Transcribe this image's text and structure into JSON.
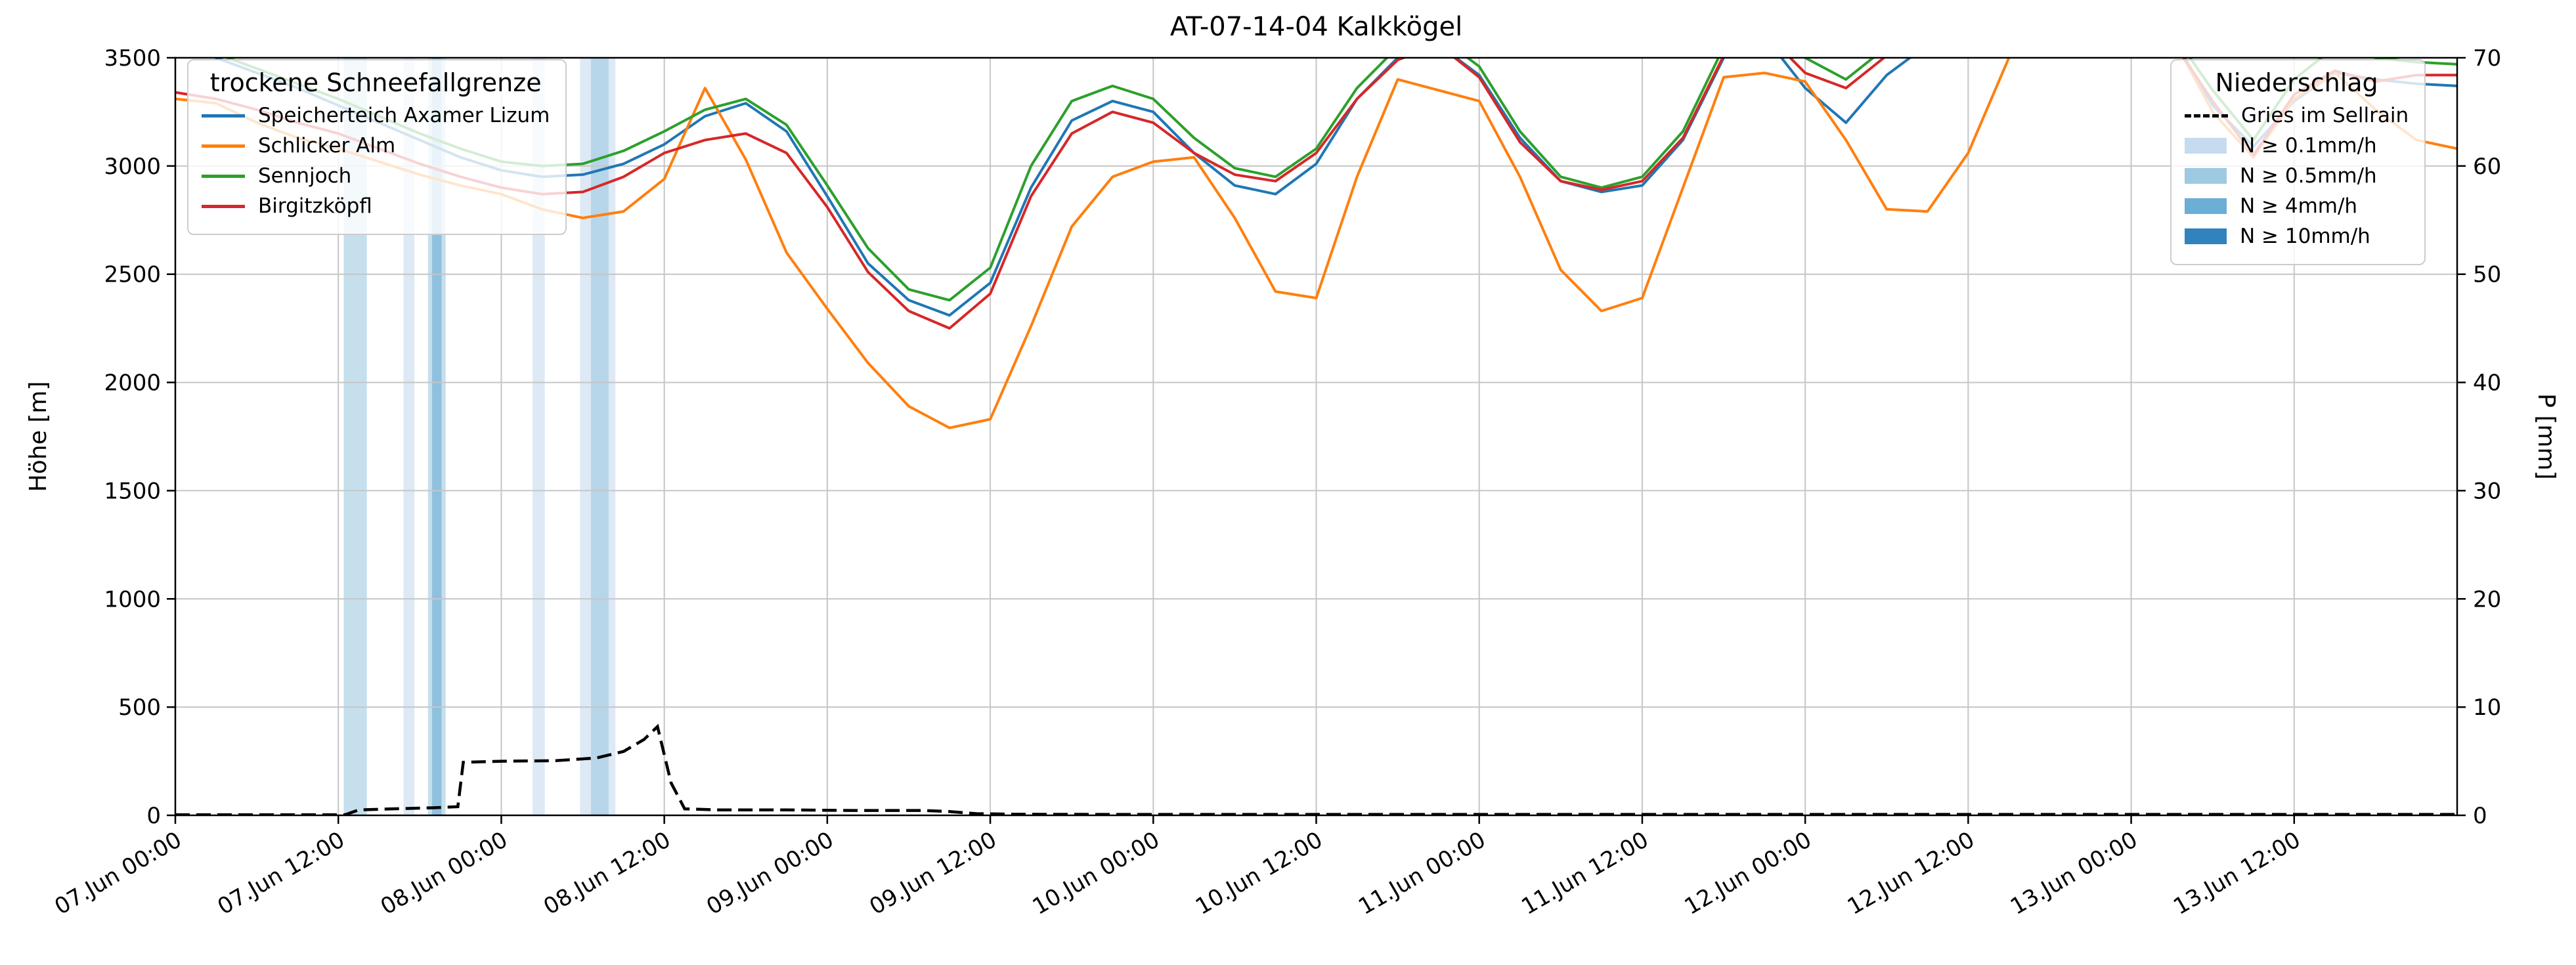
{
  "legends": {
    "lines_title": "trockene Schneefallgrenze",
    "precip_title": "Niederschlag"
  },
  "chart_data": {
    "type": "line",
    "title": "AT-07-14-04 Kalkkögel",
    "ylabel_left": "Höhe [m]",
    "ylabel_right": "P [mm]",
    "ylim_left": [
      0,
      3500
    ],
    "ylim_right": [
      0,
      70
    ],
    "xlim_hours": [
      0,
      168
    ],
    "x_unit": "hours since first tick",
    "grid": true,
    "legend_positions": [
      "upper left",
      "upper right"
    ],
    "x_tick_hours": [
      0,
      12,
      24,
      36,
      48,
      60,
      72,
      84,
      96,
      108,
      120,
      132,
      144,
      156
    ],
    "x_tick_labels": [
      "07.Jun 00:00",
      "07.Jun 12:00",
      "08.Jun 00:00",
      "08.Jun 12:00",
      "09.Jun 00:00",
      "09.Jun 12:00",
      "10.Jun 00:00",
      "10.Jun 12:00",
      "11.Jun 00:00",
      "11.Jun 12:00",
      "12.Jun 00:00",
      "12.Jun 12:00",
      "13.Jun 00:00",
      "13.Jun 12:00"
    ],
    "y_ticks_left": [
      0,
      500,
      1000,
      1500,
      2000,
      2500,
      3000,
      3500
    ],
    "y_ticks_right": [
      0,
      10,
      20,
      30,
      40,
      50,
      60,
      70
    ],
    "series_x_hours": [
      0,
      3,
      6,
      9,
      12,
      15,
      18,
      21,
      24,
      27,
      30,
      33,
      36,
      39,
      42,
      45,
      48,
      51,
      54,
      57,
      60,
      63,
      66,
      69,
      72,
      75,
      78,
      81,
      84,
      87,
      90,
      93,
      96,
      99,
      102,
      105,
      108,
      111,
      114,
      117,
      120,
      123,
      126,
      129,
      132,
      135,
      138,
      141,
      144,
      147,
      150,
      153,
      156,
      159,
      162,
      165,
      168
    ],
    "series": [
      {
        "name": "Speicherteich Axamer Lizum",
        "color": "#1f77b4",
        "values": [
          3560,
          3500,
          3430,
          3360,
          3280,
          3200,
          3120,
          3040,
          2980,
          2950,
          2960,
          3010,
          3100,
          3230,
          3290,
          3160,
          2860,
          2550,
          2380,
          2310,
          2460,
          2900,
          3210,
          3300,
          3250,
          3060,
          2910,
          2870,
          3010,
          3310,
          3500,
          3560,
          3420,
          3130,
          2930,
          2880,
          2910,
          3120,
          3500,
          3600,
          3360,
          3200,
          3420,
          3560,
          3620,
          3640,
          3640,
          3640,
          3640,
          3600,
          3280,
          3090,
          3300,
          3430,
          3400,
          3380,
          3370
        ]
      },
      {
        "name": "Schlicker Alm",
        "color": "#ff7f0e",
        "values": [
          3310,
          3290,
          3200,
          3130,
          3080,
          3020,
          2960,
          2910,
          2870,
          2800,
          2760,
          2790,
          2940,
          3360,
          3030,
          2600,
          2340,
          2090,
          1890,
          1790,
          1830,
          2260,
          2720,
          2950,
          3020,
          3040,
          2760,
          2420,
          2390,
          2950,
          3400,
          3350,
          3300,
          2950,
          2520,
          2330,
          2390,
          2900,
          3410,
          3430,
          3390,
          3120,
          2800,
          2790,
          3060,
          3500,
          3620,
          3640,
          3640,
          3600,
          3250,
          3040,
          3310,
          3430,
          3260,
          3120,
          3080
        ]
      },
      {
        "name": "Sennjoch",
        "color": "#2ca02c",
        "values": [
          3560,
          3520,
          3450,
          3380,
          3310,
          3230,
          3150,
          3080,
          3020,
          3000,
          3010,
          3070,
          3160,
          3260,
          3310,
          3190,
          2910,
          2620,
          2430,
          2380,
          2530,
          3000,
          3300,
          3370,
          3310,
          3130,
          2990,
          2950,
          3080,
          3360,
          3550,
          3600,
          3460,
          3160,
          2950,
          2900,
          2950,
          3160,
          3550,
          3650,
          3500,
          3400,
          3550,
          3650,
          3650,
          3650,
          3650,
          3650,
          3650,
          3620,
          3350,
          3120,
          3400,
          3550,
          3500,
          3480,
          3470
        ]
      },
      {
        "name": "Birgitzköpfl",
        "color": "#d62728",
        "values": [
          3340,
          3310,
          3260,
          3200,
          3150,
          3080,
          3010,
          2950,
          2900,
          2870,
          2880,
          2950,
          3060,
          3120,
          3150,
          3060,
          2810,
          2510,
          2330,
          2250,
          2410,
          2860,
          3150,
          3250,
          3200,
          3060,
          2960,
          2930,
          3060,
          3310,
          3490,
          3560,
          3410,
          3110,
          2930,
          2890,
          2930,
          3130,
          3510,
          3620,
          3430,
          3360,
          3510,
          3610,
          3620,
          3620,
          3620,
          3620,
          3620,
          3580,
          3300,
          3050,
          3330,
          3440,
          3390,
          3420,
          3420
        ]
      }
    ],
    "precip_line": {
      "name": "Gries im Sellrain",
      "color": "#000000",
      "style": "dashed",
      "x_hours": [
        0,
        12.5,
        13.5,
        16,
        19,
        20.8,
        21.2,
        24,
        28,
        31,
        33,
        34.5,
        35.5,
        36.5,
        37.5,
        40,
        45,
        50,
        55,
        57,
        59,
        62,
        70,
        90,
        120,
        150,
        168
      ],
      "p_mm": [
        0.05,
        0.05,
        0.5,
        0.6,
        0.7,
        0.8,
        4.9,
        5.0,
        5.05,
        5.3,
        5.9,
        7.0,
        8.2,
        3.0,
        0.6,
        0.5,
        0.5,
        0.45,
        0.45,
        0.35,
        0.15,
        0.1,
        0.08,
        0.08,
        0.08,
        0.08,
        0.08
      ]
    },
    "band_levels": [
      {
        "label": "N ≥ 0.1mm/h",
        "color": "#c6dbef"
      },
      {
        "label": "N ≥ 0.5mm/h",
        "color": "#9ecae1"
      },
      {
        "label": "N ≥ 4mm/h",
        "color": "#6baed6"
      },
      {
        "label": "N ≥ 10mm/h",
        "color": "#3182bd"
      }
    ],
    "precip_bands": [
      {
        "x0": 12.4,
        "x1": 14.1,
        "level": 2
      },
      {
        "x0": 16.8,
        "x1": 17.6,
        "level": 1
      },
      {
        "x0": 18.6,
        "x1": 19.9,
        "level": 2
      },
      {
        "x0": 18.9,
        "x1": 19.6,
        "level": 3
      },
      {
        "x0": 26.3,
        "x1": 27.2,
        "level": 1
      },
      {
        "x0": 29.8,
        "x1": 32.4,
        "level": 1
      },
      {
        "x0": 30.6,
        "x1": 31.9,
        "level": 2
      }
    ]
  }
}
